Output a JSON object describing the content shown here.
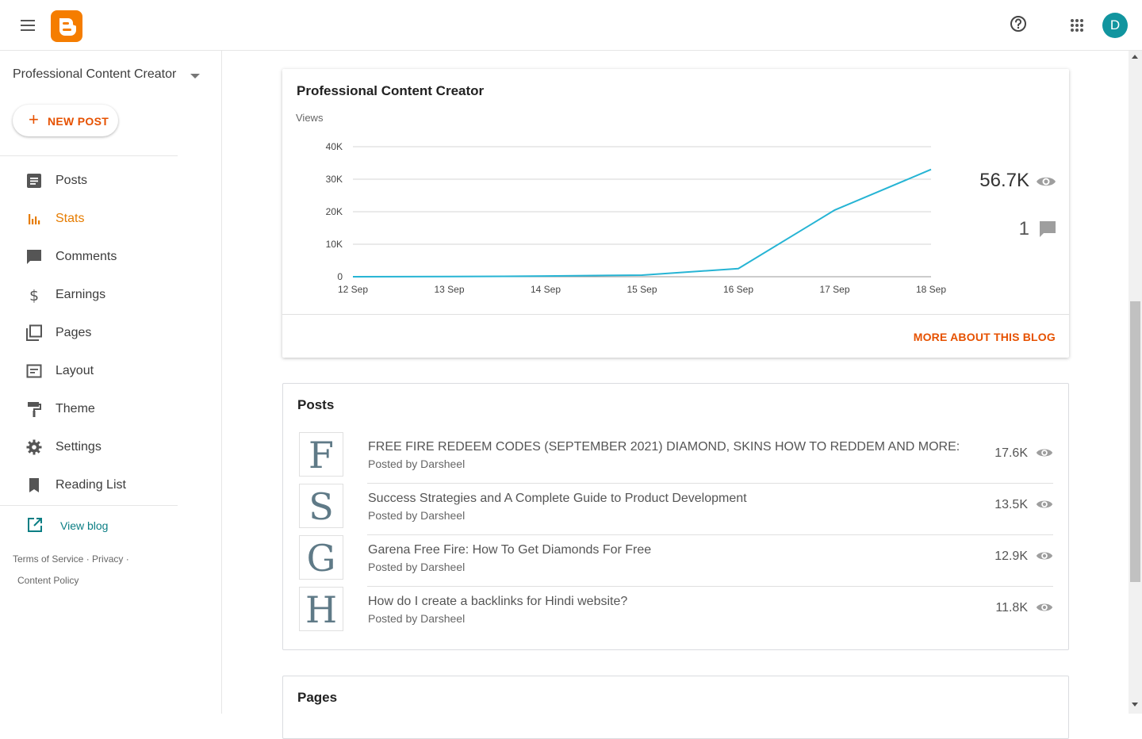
{
  "header": {
    "icons": {
      "menu": "hamburger-icon",
      "logo": "blogger-logo",
      "help": "help-icon",
      "apps": "apps-grid-icon"
    },
    "avatar_initial": "D",
    "accent": "#f57d00",
    "avatar_color": "#11959f"
  },
  "sidebar": {
    "blog_name": "Professional Content Creator",
    "new_post_label": "NEW POST",
    "items": [
      {
        "label": "Posts",
        "icon": "posts-icon"
      },
      {
        "label": "Stats",
        "icon": "stats-icon",
        "active": true
      },
      {
        "label": "Comments",
        "icon": "comment-icon"
      },
      {
        "label": "Earnings",
        "icon": "dollar-icon"
      },
      {
        "label": "Pages",
        "icon": "pages-icon"
      },
      {
        "label": "Layout",
        "icon": "layout-icon"
      },
      {
        "label": "Theme",
        "icon": "paint-roller-icon"
      },
      {
        "label": "Settings",
        "icon": "gear-icon"
      },
      {
        "label": "Reading List",
        "icon": "bookmark-icon"
      }
    ],
    "view_blog_label": "View blog",
    "footer": {
      "terms": "Terms of Service",
      "privacy": "Privacy",
      "content_policy": "Content Policy"
    }
  },
  "stats_card": {
    "title": "Professional Content Creator",
    "views_label": "Views",
    "total_views": "56.7K",
    "total_comments": "1",
    "more_link": "MORE ABOUT THIS BLOG"
  },
  "chart_data": {
    "type": "line",
    "ylabel": "Views",
    "x": [
      "12 Sep",
      "13 Sep",
      "14 Sep",
      "15 Sep",
      "16 Sep",
      "17 Sep",
      "18 Sep"
    ],
    "y_ticks": [
      "0",
      "10K",
      "20K",
      "30K",
      "40K"
    ],
    "ylim": [
      0,
      40000
    ],
    "series": [
      {
        "values": [
          0,
          50,
          200,
          500,
          2500,
          20500,
          33000
        ],
        "color": "#26b4d4"
      }
    ],
    "grid": true
  },
  "posts_card": {
    "title": "Posts",
    "items": [
      {
        "letter": "F",
        "title": "FREE FIRE REDEEM CODES (SEPTEMBER 2021) DIAMOND, SKINS HOW TO REDDEM AND MORE:",
        "author": "Posted by Darsheel",
        "views": "17.6K"
      },
      {
        "letter": "S",
        "title": "Success Strategies and A Complete Guide to Product Development",
        "author": "Posted by Darsheel",
        "views": "13.5K"
      },
      {
        "letter": "G",
        "title": "Garena Free Fire: How To Get Diamonds For Free",
        "author": "Posted by Darsheel",
        "views": "12.9K"
      },
      {
        "letter": "H",
        "title": "How do I create a backlinks for Hindi website?",
        "author": "Posted by Darsheel",
        "views": "11.8K"
      }
    ]
  },
  "pages_card": {
    "title": "Pages"
  }
}
